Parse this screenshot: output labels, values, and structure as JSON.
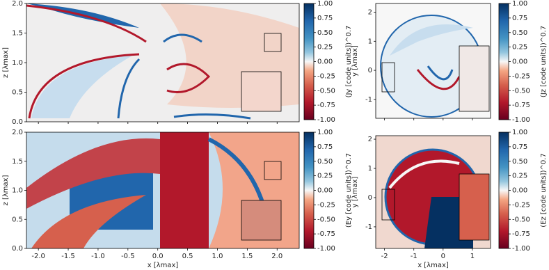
{
  "chart_data": [
    {
      "type": "heatmap",
      "colormap": "RdBu",
      "ylabel": "z [λmax]",
      "xlim": [
        -2.2,
        2.37
      ],
      "ylim": [
        0,
        2
      ],
      "xticks": [
        -2,
        -1.5,
        -1,
        -0.5,
        0,
        0.5,
        1,
        1.5,
        2
      ],
      "yticks": [
        {
          "value": 0,
          "label": "0.0"
        },
        {
          "value": 0.5,
          "label": "0.5"
        },
        {
          "value": 1,
          "label": "1.0"
        },
        {
          "value": 1.5,
          "label": "1.5"
        },
        {
          "value": 2,
          "label": "2.0"
        }
      ],
      "colorbar": {
        "label": "(Jy [code units])^0.7",
        "lim": [
          -1,
          1
        ],
        "ticks": [
          {
            "value": -1,
            "label": "-1.00"
          },
          {
            "value": -0.75,
            "label": "-0.75"
          },
          {
            "value": -0.5,
            "label": "-0.50"
          },
          {
            "value": -0.25,
            "label": "-0.25"
          },
          {
            "value": 0,
            "label": "0.00"
          },
          {
            "value": 0.25,
            "label": "0.25"
          },
          {
            "value": 0.5,
            "label": "0.50"
          },
          {
            "value": 0.75,
            "label": "0.75"
          },
          {
            "value": 1,
            "label": "1.00"
          }
        ]
      }
    },
    {
      "type": "heatmap",
      "colormap": "RdBu",
      "ylabel": "y [λmax]",
      "xlim": [
        -2.3,
        1.62
      ],
      "ylim": [
        -1.65,
        2.3
      ],
      "xticks": [
        -2,
        -1,
        0,
        1
      ],
      "yticks": [
        -1,
        0,
        1,
        2
      ],
      "colorbar": {
        "label": "(Jz [code units])^0.7",
        "lim": [
          -1,
          1
        ],
        "ticks": [
          {
            "value": -1,
            "label": "-1.00"
          },
          {
            "value": -0.75,
            "label": "-0.75"
          },
          {
            "value": -0.5,
            "label": "-0.50"
          },
          {
            "value": -0.25,
            "label": "-0.25"
          },
          {
            "value": 0,
            "label": "0.00"
          },
          {
            "value": 0.25,
            "label": "0.25"
          },
          {
            "value": 0.5,
            "label": "0.50"
          },
          {
            "value": 0.75,
            "label": "0.75"
          },
          {
            "value": 1,
            "label": "1.00"
          }
        ]
      }
    },
    {
      "type": "heatmap",
      "colormap": "RdBu",
      "ylabel": "z [λmax]",
      "xlabel": "x [λmax]",
      "xlim": [
        -2.2,
        2.37
      ],
      "ylim": [
        0,
        2
      ],
      "xticks": [
        {
          "value": -2,
          "label": "-2.0"
        },
        {
          "value": -1.5,
          "label": "-1.5"
        },
        {
          "value": -1,
          "label": "-1.0"
        },
        {
          "value": -0.5,
          "label": "-0.5"
        },
        {
          "value": 0,
          "label": "0.0"
        },
        {
          "value": 0.5,
          "label": "0.5"
        },
        {
          "value": 1,
          "label": "1.0"
        },
        {
          "value": 1.5,
          "label": "1.5"
        },
        {
          "value": 2,
          "label": "2.0"
        }
      ],
      "yticks": [
        {
          "value": 0,
          "label": "0.0"
        },
        {
          "value": 0.5,
          "label": "0.5"
        },
        {
          "value": 1,
          "label": "1.0"
        },
        {
          "value": 1.5,
          "label": "1.5"
        },
        {
          "value": 2,
          "label": "2.0"
        }
      ],
      "colorbar": {
        "label": "(Ey [code units])^0.7",
        "lim": [
          -1,
          1
        ],
        "ticks": [
          {
            "value": -1,
            "label": "-1.00"
          },
          {
            "value": -0.75,
            "label": "-0.75"
          },
          {
            "value": -0.5,
            "label": "-0.50"
          },
          {
            "value": -0.25,
            "label": "-0.25"
          },
          {
            "value": 0,
            "label": "0.00"
          },
          {
            "value": 0.25,
            "label": "0.25"
          },
          {
            "value": 0.5,
            "label": "0.50"
          },
          {
            "value": 0.75,
            "label": "0.75"
          },
          {
            "value": 1,
            "label": "1.00"
          }
        ]
      }
    },
    {
      "type": "heatmap",
      "colormap": "RdBu",
      "ylabel": "y [λmax]",
      "xlabel": "x [λmax]",
      "xlim": [
        -2.3,
        1.62
      ],
      "ylim": [
        -1.74,
        2.12
      ],
      "xticks": [
        -2,
        -1,
        0,
        1
      ],
      "yticks": [
        -1,
        0,
        1,
        2
      ],
      "colorbar": {
        "label": "(Ez [code units])^0.7",
        "lim": [
          -1,
          1
        ],
        "ticks": [
          {
            "value": -1,
            "label": "-1.00"
          },
          {
            "value": -0.75,
            "label": "-0.75"
          },
          {
            "value": -0.5,
            "label": "-0.50"
          },
          {
            "value": -0.25,
            "label": "-0.25"
          },
          {
            "value": 0,
            "label": "0.00"
          },
          {
            "value": 0.25,
            "label": "0.25"
          },
          {
            "value": 0.5,
            "label": "0.50"
          },
          {
            "value": 0.75,
            "label": "0.75"
          },
          {
            "value": 1,
            "label": "1.00"
          }
        ]
      }
    }
  ]
}
